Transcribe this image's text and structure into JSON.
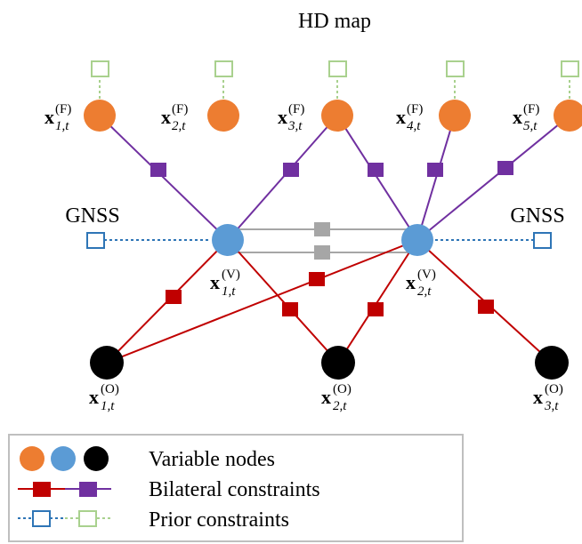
{
  "title": "HD map",
  "gnss_left": "GNSS",
  "gnss_right": "GNSS",
  "feature_nodes": [
    {
      "base": "x",
      "sup": "(F)",
      "sub": "1,t"
    },
    {
      "base": "x",
      "sup": "(F)",
      "sub": "2,t"
    },
    {
      "base": "x",
      "sup": "(F)",
      "sub": "3,t"
    },
    {
      "base": "x",
      "sup": "(F)",
      "sub": "4,t"
    },
    {
      "base": "x",
      "sup": "(F)",
      "sub": "5,t"
    }
  ],
  "vehicle_nodes": [
    {
      "base": "x",
      "sup": "(V)",
      "sub": "1,t"
    },
    {
      "base": "x",
      "sup": "(V)",
      "sub": "2,t"
    }
  ],
  "object_nodes": [
    {
      "base": "x",
      "sup": "(O)",
      "sub": "1,t"
    },
    {
      "base": "x",
      "sup": "(O)",
      "sub": "2,t"
    },
    {
      "base": "x",
      "sup": "(O)",
      "sub": "3,t"
    }
  ],
  "legend": {
    "variable_nodes": "Variable nodes",
    "bilateral_constraints": "Bilateral constraints",
    "prior_constraints": "Prior constraints"
  },
  "colors": {
    "feature_node": "#ED7D31",
    "vehicle_node": "#5B9BD5",
    "object_node": "#000000",
    "red_constraint": "#C00000",
    "purple_constraint": "#7030A0",
    "gray_constraint": "#A6A6A6",
    "gnss_prior": "#2E75B6",
    "map_prior": "#A9D18E"
  }
}
